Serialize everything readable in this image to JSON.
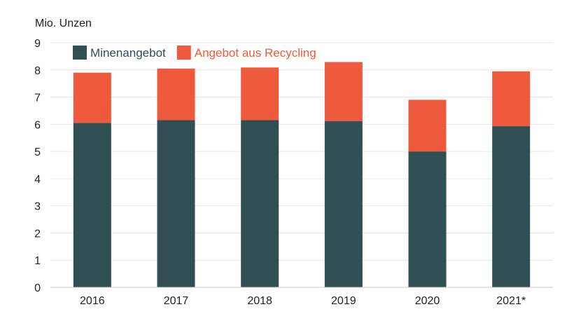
{
  "chart_data": {
    "type": "bar",
    "stacked": true,
    "ylabel": "Mio. Unzen",
    "ylim": [
      0,
      9
    ],
    "yticks": [
      0,
      1,
      2,
      3,
      4,
      5,
      6,
      7,
      8,
      9
    ],
    "grid": true,
    "legend_position": "top-left",
    "categories": [
      "2016",
      "2017",
      "2018",
      "2019",
      "2020",
      "2021*"
    ],
    "series": [
      {
        "name": "Minenangebot",
        "color": "#2f4f52",
        "values": [
          6.05,
          6.15,
          6.15,
          6.12,
          5.0,
          5.93
        ]
      },
      {
        "name": "Angebot aus Recycling",
        "color": "#f05a3c",
        "values": [
          1.85,
          1.9,
          1.94,
          2.17,
          1.9,
          2.02
        ]
      }
    ]
  }
}
